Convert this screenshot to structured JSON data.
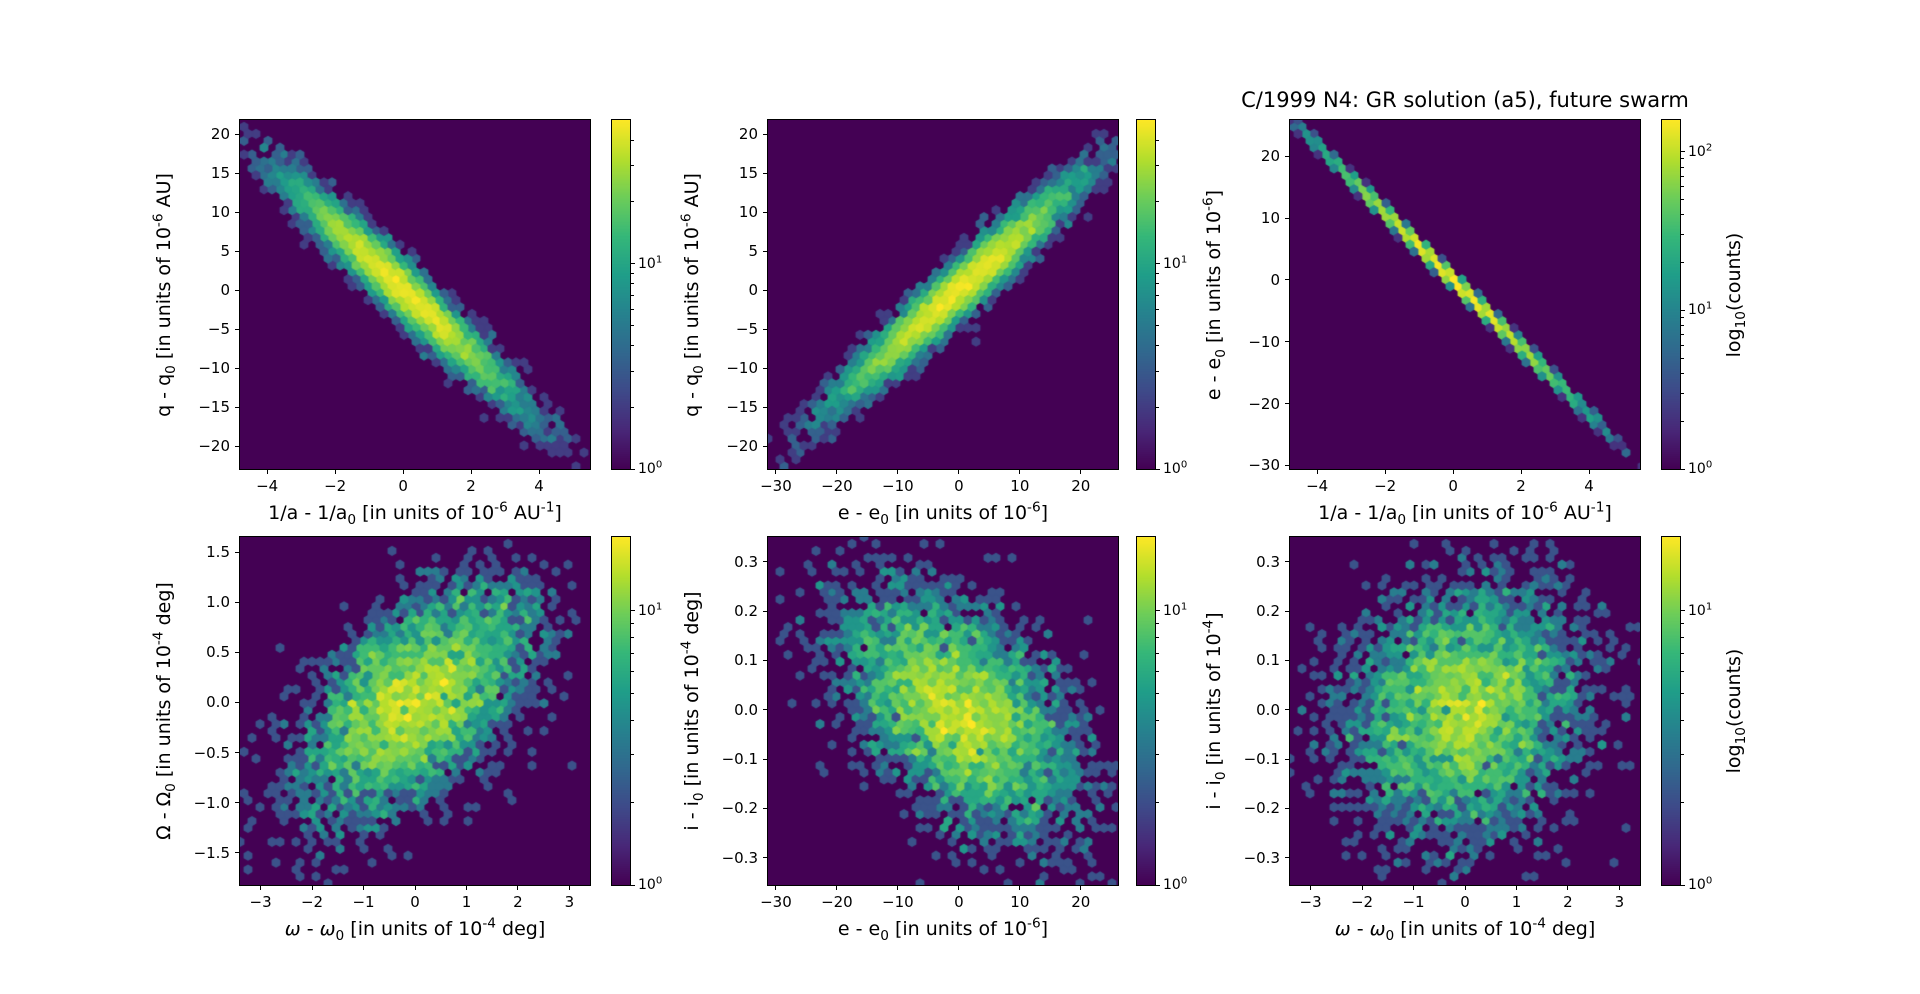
{
  "title": "C/1999 N4: GR solution (a5), future swarm",
  "colormap": {
    "name": "viridis",
    "background": "#440154",
    "peak": "#fde725"
  },
  "chart_data": [
    {
      "type": "hexbin",
      "id": "q-vs-inva",
      "xlabel": "1/a - 1/a_{0} [in units of 10^{-6} AU^{-1}]",
      "ylabel": "q - q_{0} [in units of 10^{-6} AU]",
      "xlim": [
        -4.8,
        5.5
      ],
      "ylim": [
        -22.9,
        21.8
      ],
      "xticks": {
        "values": [
          -4,
          -2,
          0,
          2,
          4
        ],
        "labels": [
          "−4",
          "−2",
          "0",
          "2",
          "4"
        ]
      },
      "yticks": {
        "values": [
          20,
          15,
          10,
          5,
          0,
          -5,
          -10,
          -15,
          -20
        ],
        "labels": [
          "20",
          "15",
          "10",
          "5",
          "0",
          "−5",
          "−10",
          "−15",
          "−20"
        ]
      },
      "colorbar": {
        "log_top": 1.7,
        "ticks": [
          {
            "exp": 0,
            "label": "10^{0}"
          },
          {
            "exp": 1,
            "label": "10^{1}"
          }
        ],
        "label": null
      },
      "distribution": {
        "model": "gaussian",
        "center": [
          0,
          0
        ],
        "sigma_x": 1.55,
        "sigma_y": 6.6,
        "rho": -0.965,
        "trend": "negative"
      },
      "n_points": 8000,
      "peak_bin_count": 49,
      "seed": 11
    },
    {
      "type": "hexbin",
      "id": "q-vs-e",
      "xlabel": "e - e_{0} [in units of 10^{-6}]",
      "ylabel": "q - q_{0} [in units of 10^{-6} AU]",
      "xlim": [
        -31.3,
        26.1
      ],
      "ylim": [
        -22.9,
        21.8
      ],
      "xticks": {
        "values": [
          -30,
          -20,
          -10,
          0,
          10,
          20
        ],
        "labels": [
          "−30",
          "−20",
          "−10",
          "0",
          "10",
          "20"
        ]
      },
      "yticks": {
        "values": [
          20,
          15,
          10,
          5,
          0,
          -5,
          -10,
          -15,
          -20
        ],
        "labels": [
          "20",
          "15",
          "10",
          "5",
          "0",
          "−5",
          "−10",
          "−15",
          "−20"
        ]
      },
      "colorbar": {
        "log_top": 1.7,
        "ticks": [
          {
            "exp": 0,
            "label": "10^{0}"
          },
          {
            "exp": 1,
            "label": "10^{1}"
          }
        ],
        "label": null
      },
      "distribution": {
        "model": "gaussian",
        "center": [
          0,
          0
        ],
        "sigma_x": 9.2,
        "sigma_y": 6.6,
        "rho": 0.965,
        "trend": "positive"
      },
      "n_points": 8000,
      "peak_bin_count": 49,
      "seed": 22
    },
    {
      "type": "hexbin",
      "id": "e-vs-inva",
      "xlabel": "1/a - 1/a_{0} [in units of 10^{-6} AU^{-1}]",
      "ylabel": "e - e_{0} [in units of 10^{-6}]",
      "xlim": [
        -4.8,
        5.5
      ],
      "ylim": [
        -30.6,
        25.9
      ],
      "xticks": {
        "values": [
          -4,
          -2,
          0,
          2,
          4
        ],
        "labels": [
          "−4",
          "−2",
          "0",
          "2",
          "4"
        ]
      },
      "yticks": {
        "values": [
          20,
          10,
          0,
          -10,
          -20,
          -30
        ],
        "labels": [
          "20",
          "10",
          "0",
          "−10",
          "−20",
          "−30"
        ]
      },
      "colorbar": {
        "log_top": 2.2,
        "ticks": [
          {
            "exp": 0,
            "label": "10^{0}"
          },
          {
            "exp": 1,
            "label": "10^{1}"
          },
          {
            "exp": 2,
            "label": "10^{2}"
          }
        ],
        "label": "log_{10}(counts)"
      },
      "distribution": {
        "model": "line",
        "center": [
          0,
          0
        ],
        "slope": -5.45,
        "sigma_x": 1.6,
        "sigma_perp_y": 0.38,
        "trend": "negative-tight-line"
      },
      "n_points": 10000,
      "peak_bin_count": 160,
      "seed": 33
    },
    {
      "type": "hexbin",
      "id": "Omega-vs-omega",
      "xlabel": "*ω* - *ω*_{0} [in units of 10^{-4} deg]",
      "ylabel": "Ω - Ω_{0} [in units of 10^{-4} deg]",
      "xlim": [
        -3.4,
        3.4
      ],
      "ylim": [
        -1.82,
        1.65
      ],
      "xticks": {
        "values": [
          -3,
          -2,
          -1,
          0,
          1,
          2,
          3
        ],
        "labels": [
          "−3",
          "−2",
          "−1",
          "0",
          "1",
          "2",
          "3"
        ]
      },
      "yticks": {
        "values": [
          1.5,
          1.0,
          0.5,
          0.0,
          -0.5,
          -1.0,
          -1.5
        ],
        "labels": [
          "1.5",
          "1.0",
          "0.5",
          "0.0",
          "−0.5",
          "−1.0",
          "−1.5"
        ]
      },
      "colorbar": {
        "log_top": 1.27,
        "ticks": [
          {
            "exp": 0,
            "label": "10^{0}"
          },
          {
            "exp": 1,
            "label": "10^{1}"
          }
        ],
        "label": null
      },
      "distribution": {
        "model": "gaussian",
        "center": [
          0,
          0
        ],
        "sigma_x": 1.08,
        "sigma_y": 0.56,
        "rho": 0.55,
        "trend": "positive-diffuse"
      },
      "n_points": 4500,
      "peak_bin_count": 19,
      "seed": 44
    },
    {
      "type": "hexbin",
      "id": "i-vs-e",
      "xlabel": "e - e_{0} [in units of 10^{-6}]",
      "ylabel": "i - i_{0} [in units of 10^{-4} deg]",
      "xlim": [
        -31.3,
        26.1
      ],
      "ylim": [
        -0.355,
        0.35
      ],
      "xticks": {
        "values": [
          -30,
          -20,
          -10,
          0,
          10,
          20
        ],
        "labels": [
          "−30",
          "−20",
          "−10",
          "0",
          "10",
          "20"
        ]
      },
      "yticks": {
        "values": [
          0.3,
          0.2,
          0.1,
          0.0,
          -0.1,
          -0.2,
          -0.3
        ],
        "labels": [
          "0.3",
          "0.2",
          "0.1",
          "0.0",
          "−0.1",
          "−0.2",
          "−0.3"
        ]
      },
      "colorbar": {
        "log_top": 1.27,
        "ticks": [
          {
            "exp": 0,
            "label": "10^{0}"
          },
          {
            "exp": 1,
            "label": "10^{1}"
          }
        ],
        "label": null
      },
      "distribution": {
        "model": "gaussian",
        "center": [
          0,
          0
        ],
        "sigma_x": 9.2,
        "sigma_y": 0.118,
        "rho": -0.48,
        "trend": "negative-diffuse"
      },
      "n_points": 4500,
      "peak_bin_count": 19,
      "seed": 55
    },
    {
      "type": "hexbin",
      "id": "i-vs-omega",
      "xlabel": "*ω* - *ω*_{0} [in units of 10^{-4} deg]",
      "ylabel": "i - i_{0} [in units of 10^{-4}]",
      "xlim": [
        -3.4,
        3.4
      ],
      "ylim": [
        -0.355,
        0.35
      ],
      "xticks": {
        "values": [
          -3,
          -2,
          -1,
          0,
          1,
          2,
          3
        ],
        "labels": [
          "−3",
          "−2",
          "−1",
          "0",
          "1",
          "2",
          "3"
        ]
      },
      "yticks": {
        "values": [
          0.3,
          0.2,
          0.1,
          0.0,
          -0.1,
          -0.2,
          -0.3
        ],
        "labels": [
          "0.3",
          "0.2",
          "0.1",
          "0.0",
          "−0.1",
          "−0.2",
          "−0.3"
        ]
      },
      "colorbar": {
        "log_top": 1.27,
        "ticks": [
          {
            "exp": 0,
            "label": "10^{0}"
          },
          {
            "exp": 1,
            "label": "10^{1}"
          }
        ],
        "label": "log_{10}(counts)"
      },
      "distribution": {
        "model": "gaussian",
        "center": [
          0,
          0
        ],
        "sigma_x": 1.08,
        "sigma_y": 0.118,
        "rho": 0.12,
        "trend": "round-diffuse"
      },
      "n_points": 4500,
      "peak_bin_count": 19,
      "seed": 66
    }
  ]
}
